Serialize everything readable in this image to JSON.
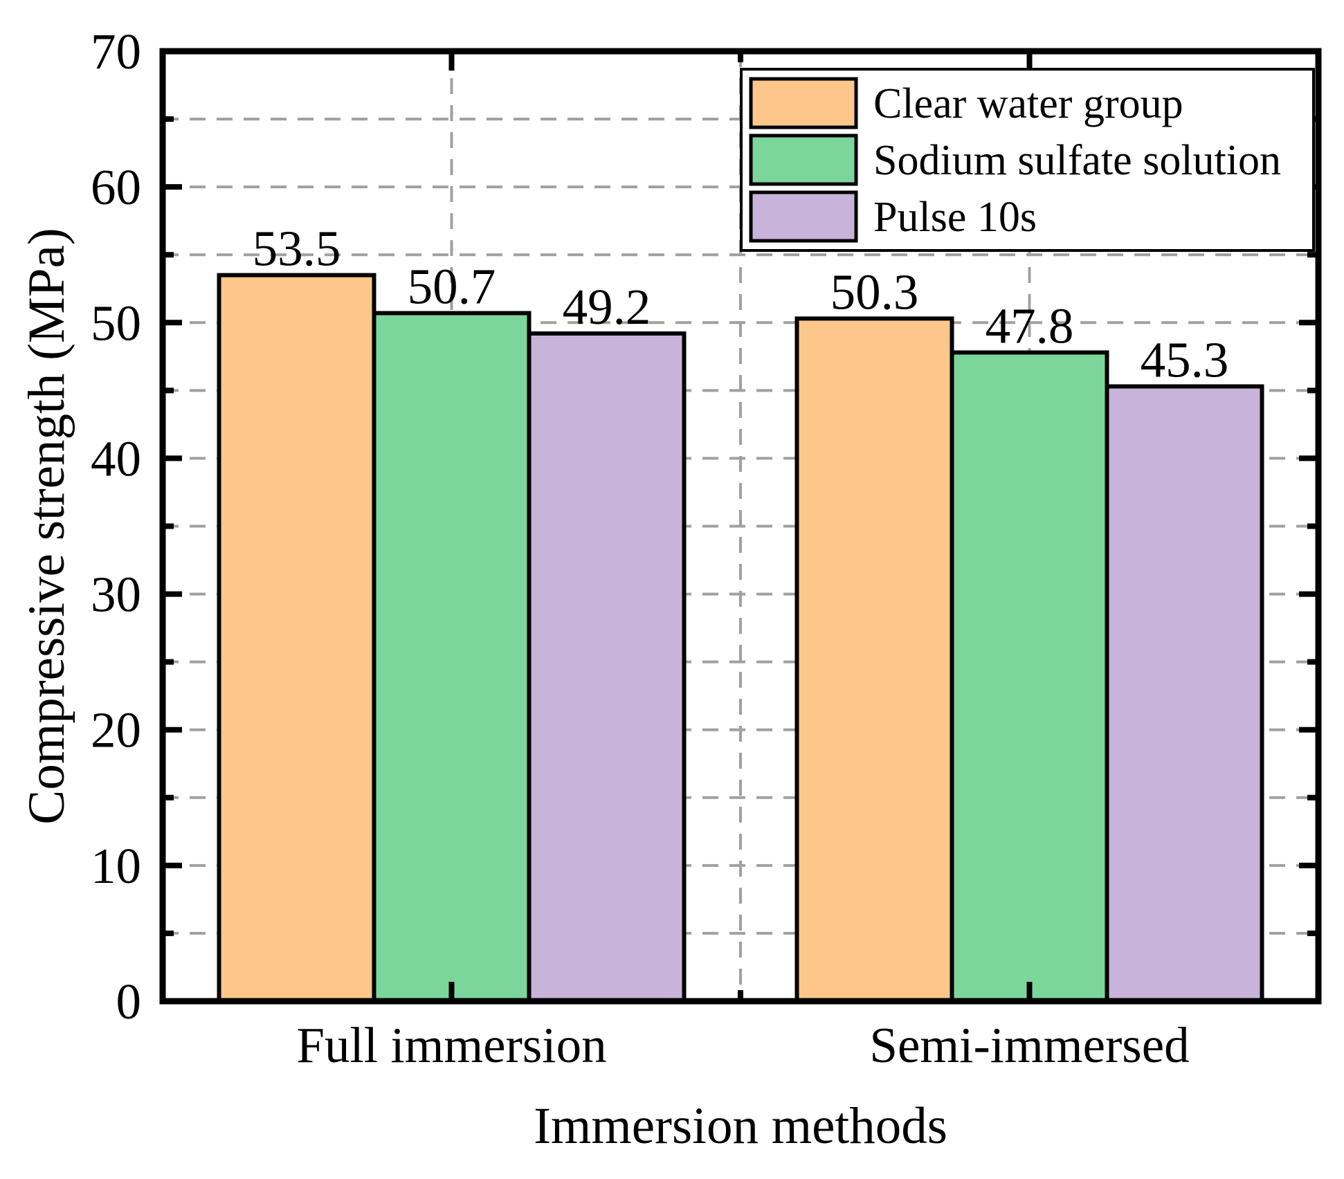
{
  "chart_data": {
    "type": "bar",
    "categories": [
      "Full immersion",
      "Semi-immersed"
    ],
    "series": [
      {
        "name": "Clear water group",
        "color": "#FDC78C",
        "values": [
          53.5,
          50.3
        ]
      },
      {
        "name": "Sodium sulfate solution",
        "color": "#7CD69B",
        "values": [
          50.7,
          47.8
        ]
      },
      {
        "name": "Pulse 10s",
        "color": "#C8B3DA",
        "values": [
          49.2,
          45.3
        ]
      }
    ],
    "value_labels": [
      [
        "53.5",
        "50.7",
        "49.2"
      ],
      [
        "50.3",
        "47.8",
        "45.3"
      ]
    ],
    "xlabel": "Immersion methods",
    "ylabel": "Compressive strength (MPa)",
    "ylim": [
      0,
      70
    ],
    "y_major_step": 10,
    "y_minor_step": 5,
    "y_tick_labels": [
      "0",
      "10",
      "20",
      "30",
      "40",
      "50",
      "60",
      "70"
    ],
    "grid": "dashed",
    "grid_color": "#A0A0A0",
    "axis_color": "#000000",
    "bar_outline_color": "#000000",
    "legend_position": "top-right",
    "legend_border_color": "#000000",
    "legend_background": "#ffffff"
  }
}
